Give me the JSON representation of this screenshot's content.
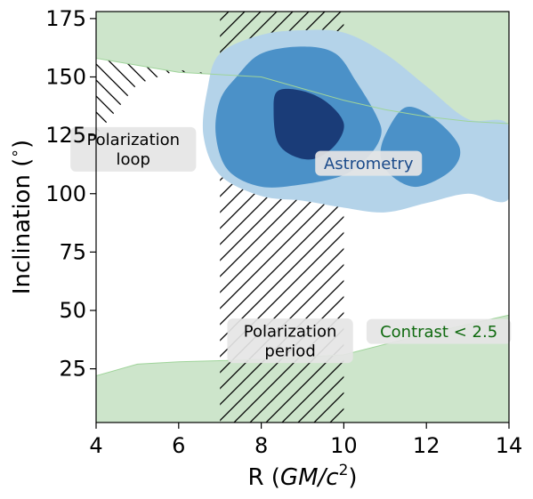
{
  "chart_data": {
    "type": "contour",
    "xlabel": "R (GM/c²)",
    "xlabel_parts": {
      "prefix": "R (",
      "math": "GM/c",
      "sup": "2",
      "suffix": ")"
    },
    "ylabel": "Inclination (°)",
    "ylabel_parts": {
      "prefix": "Inclination (",
      "sup": "∘",
      "suffix": ")"
    },
    "xlim": [
      4,
      14
    ],
    "ylim": [
      2,
      178
    ],
    "xticks": [
      4,
      6,
      8,
      10,
      12,
      14
    ],
    "yticks": [
      25,
      50,
      75,
      100,
      125,
      150,
      175
    ],
    "grid": false,
    "colors": {
      "contrast_fill": "#cde5cb",
      "contrast_edge": "#9fd49a",
      "astrometry_outer": "#b4d3e9",
      "astrometry_mid": "#4b91c8",
      "astrometry_inner": "#1a3c78",
      "label_box": "#e5e5e5",
      "contrast_text": "#0f6a0f",
      "astrometry_text": "#1a4a8a"
    },
    "regions": {
      "contrast_lower": [
        [
          4,
          22
        ],
        [
          5,
          27
        ],
        [
          6,
          28
        ],
        [
          8,
          29
        ],
        [
          10,
          31
        ],
        [
          12,
          40
        ],
        [
          13,
          44
        ],
        [
          14,
          48
        ]
      ],
      "contrast_upper": [
        [
          4,
          158
        ],
        [
          5,
          155
        ],
        [
          6,
          152
        ],
        [
          7,
          151
        ],
        [
          8,
          150
        ],
        [
          9,
          145
        ],
        [
          10,
          140
        ],
        [
          11,
          136
        ],
        [
          12,
          133
        ],
        [
          13,
          131
        ],
        [
          14,
          130
        ]
      ],
      "polarization_period": [
        7,
        10
      ],
      "polarization_loop_top": [
        [
          4,
          125
        ],
        [
          5,
          147
        ],
        [
          6,
          153
        ],
        [
          7,
          151
        ]
      ],
      "astrometry": {
        "outer": [
          [
            [
              7.0,
              160
            ],
            [
              8.0,
              168
            ],
            [
              9.0,
              170
            ],
            [
              10.0,
              169
            ],
            [
              11.0,
              160
            ],
            [
              12.0,
              146
            ],
            [
              13.0,
              132
            ],
            [
              14.0,
              129
            ],
            [
              14.0,
              98
            ],
            [
              13.0,
              100
            ],
            [
              12.0,
              96
            ],
            [
              11.0,
              92
            ],
            [
              10.0,
              94
            ],
            [
              9.0,
              97
            ],
            [
              8.0,
              99
            ],
            [
              7.0,
              108
            ],
            [
              6.6,
              125
            ],
            [
              6.7,
              145
            ]
          ]
        ],
        "mid": [
          [
            [
              7.4,
              150
            ],
            [
              8.0,
              160
            ],
            [
              9.0,
              163
            ],
            [
              9.8,
              160
            ],
            [
              10.3,
              148
            ],
            [
              10.8,
              133
            ],
            [
              10.9,
              125
            ],
            [
              10.6,
              116
            ],
            [
              10.0,
              108
            ],
            [
              9.0,
              104
            ],
            [
              8.0,
              103
            ],
            [
              7.2,
              110
            ],
            [
              6.9,
              125
            ],
            [
              7.0,
              140
            ]
          ],
          [
            [
              11.0,
              125
            ],
            [
              11.5,
              137
            ],
            [
              12.2,
              132
            ],
            [
              12.8,
              120
            ],
            [
              12.6,
              110
            ],
            [
              11.8,
              103
            ],
            [
              11.2,
              107
            ],
            [
              10.9,
              115
            ]
          ]
        ],
        "inner": [
          [
            [
              8.4,
              144
            ],
            [
              9.0,
              144
            ],
            [
              9.6,
              139
            ],
            [
              10.0,
              130
            ],
            [
              9.8,
              121
            ],
            [
              9.3,
              115
            ],
            [
              8.8,
              116
            ],
            [
              8.4,
              122
            ],
            [
              8.3,
              135
            ]
          ]
        ]
      }
    },
    "annotations": [
      {
        "id": "polarization-loop",
        "lines": [
          "Polarization",
          "loop"
        ],
        "x": 4.9,
        "y": 119
      },
      {
        "id": "astrometry",
        "lines": [
          "Astrometry"
        ],
        "x": 10.6,
        "y": 113
      },
      {
        "id": "polarization-period",
        "lines": [
          "Polarization",
          "period"
        ],
        "x": 8.7,
        "y": 37
      },
      {
        "id": "contrast",
        "lines": [
          "Contrast < 2.5"
        ],
        "x": 12.3,
        "y": 41
      }
    ]
  }
}
